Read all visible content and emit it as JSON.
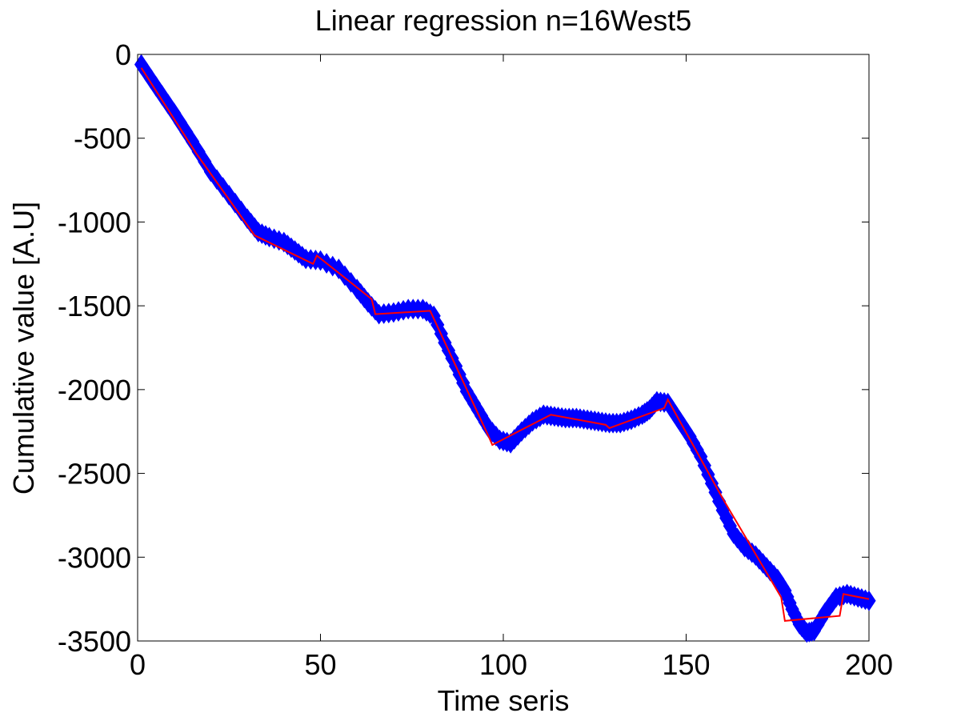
{
  "chart_data": {
    "type": "line",
    "title": "Linear regression n=16West5",
    "xlabel": "Time seris",
    "ylabel": "Cumulative value [A.U]",
    "xlim": [
      0,
      200
    ],
    "ylim": [
      -3500,
      0
    ],
    "xticks": [
      0,
      50,
      100,
      150,
      200
    ],
    "yticks": [
      0,
      -500,
      -1000,
      -1500,
      -2000,
      -2500,
      -3000,
      -3500
    ],
    "grid": false,
    "series": [
      {
        "marker": "diamond",
        "color": "#0000ff",
        "x": [
          1,
          5,
          10,
          15,
          20,
          25,
          30,
          33,
          36,
          40,
          43,
          46,
          50,
          55,
          60,
          63,
          66,
          70,
          74,
          78,
          81,
          84,
          87,
          90,
          93,
          96,
          99,
          102,
          105,
          108,
          111,
          114,
          117,
          120,
          123,
          126,
          129,
          132,
          135,
          138,
          140,
          142,
          145,
          148,
          151,
          154,
          157,
          160,
          163,
          166,
          169,
          172,
          175,
          177,
          179,
          181,
          183,
          185,
          188,
          191,
          194,
          197,
          200
        ],
        "y": [
          -60,
          -190,
          -350,
          -520,
          -700,
          -840,
          -980,
          -1060,
          -1090,
          -1120,
          -1170,
          -1220,
          -1230,
          -1280,
          -1400,
          -1480,
          -1550,
          -1540,
          -1520,
          -1520,
          -1560,
          -1720,
          -1860,
          -2010,
          -2120,
          -2230,
          -2300,
          -2320,
          -2250,
          -2190,
          -2150,
          -2160,
          -2170,
          -2170,
          -2180,
          -2190,
          -2200,
          -2200,
          -2180,
          -2150,
          -2120,
          -2070,
          -2080,
          -2180,
          -2280,
          -2400,
          -2560,
          -2720,
          -2860,
          -2940,
          -2990,
          -3060,
          -3130,
          -3200,
          -3310,
          -3400,
          -3450,
          -3440,
          -3330,
          -3240,
          -3220,
          -3240,
          -3260
        ]
      },
      {
        "color": "#ff0000",
        "x": [
          1,
          16,
          32,
          48,
          49,
          64,
          65,
          80,
          96,
          97,
          113,
          128,
          129,
          144,
          145,
          160,
          176,
          177,
          192,
          193,
          200
        ],
        "y": [
          -80,
          -590,
          -1080,
          -1250,
          -1200,
          -1460,
          -1550,
          -1530,
          -2280,
          -2330,
          -2150,
          -2210,
          -2230,
          -2110,
          -2060,
          -2650,
          -3240,
          -3380,
          -3350,
          -3220,
          -3250
        ]
      }
    ]
  }
}
